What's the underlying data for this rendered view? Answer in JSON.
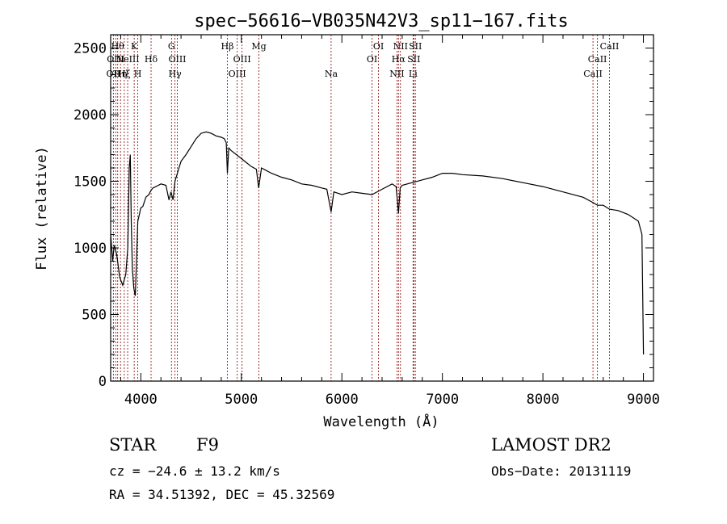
{
  "chart_data": {
    "type": "line",
    "title": "spec−56616−VB035N42V3_sp11−167.fits",
    "xlabel": "Wavelength (Å)",
    "ylabel": "Flux (relative)",
    "xlim": [
      3700,
      9100
    ],
    "ylim": [
      0,
      2600
    ],
    "xticks": [
      4000,
      5000,
      6000,
      7000,
      8000,
      9000
    ],
    "yticks": [
      0,
      500,
      1000,
      1500,
      2000,
      2500
    ],
    "grid": false,
    "line_color": "#000000",
    "marker_color": "#8b0000",
    "series": [
      {
        "x": [
          3700,
          3720,
          3735,
          3760,
          3790,
          3820,
          3850,
          3870,
          3885,
          3895,
          3905,
          3915,
          3930,
          3945,
          3960,
          3970,
          3985,
          4000,
          4020,
          4050,
          4080,
          4100,
          4120,
          4150,
          4200,
          4250,
          4280,
          4300,
          4320,
          4340,
          4360,
          4380,
          4400,
          4450,
          4500,
          4550,
          4600,
          4650,
          4700,
          4750,
          4800,
          4830,
          4850,
          4861,
          4875,
          4900,
          4950,
          5000,
          5050,
          5100,
          5150,
          5172,
          5200,
          5250,
          5300,
          5400,
          5500,
          5600,
          5700,
          5800,
          5850,
          5893,
          5920,
          6000,
          6100,
          6200,
          6300,
          6400,
          6500,
          6540,
          6563,
          6580,
          6600,
          6700,
          6800,
          6900,
          7000,
          7100,
          7200,
          7400,
          7600,
          7800,
          8000,
          8200,
          8400,
          8498,
          8542,
          8600,
          8662,
          8750,
          8850,
          8950,
          8985,
          9000
        ],
        "y": [
          1100,
          900,
          1020,
          950,
          780,
          720,
          800,
          1000,
          1600,
          1700,
          1200,
          850,
          700,
          640,
          980,
          1200,
          1250,
          1300,
          1310,
          1380,
          1400,
          1430,
          1450,
          1460,
          1480,
          1470,
          1360,
          1420,
          1360,
          1500,
          1550,
          1600,
          1650,
          1700,
          1760,
          1820,
          1860,
          1870,
          1860,
          1840,
          1830,
          1820,
          1790,
          1560,
          1750,
          1730,
          1700,
          1670,
          1640,
          1610,
          1590,
          1450,
          1600,
          1580,
          1560,
          1530,
          1510,
          1480,
          1470,
          1450,
          1440,
          1270,
          1420,
          1400,
          1420,
          1410,
          1400,
          1440,
          1480,
          1460,
          1260,
          1450,
          1470,
          1490,
          1510,
          1530,
          1560,
          1560,
          1550,
          1540,
          1520,
          1490,
          1460,
          1420,
          1380,
          1340,
          1320,
          1320,
          1290,
          1280,
          1250,
          1200,
          1100,
          200
        ]
      }
    ],
    "lines": [
      {
        "x": 3727,
        "label": "OII",
        "row": 2
      },
      {
        "x": 3750,
        "label": "OIII",
        "row": 1
      },
      {
        "x": 3770,
        "label": "Hθ",
        "row": 0
      },
      {
        "x": 3798,
        "label": "Hη",
        "row": 2
      },
      {
        "x": 3835,
        "label": "Hξ",
        "row": 2
      },
      {
        "x": 3869,
        "label": "NeIII",
        "row": 1
      },
      {
        "x": 3934,
        "label": "K",
        "row": 0
      },
      {
        "x": 3970,
        "label": "H",
        "row": 2
      },
      {
        "x": 4102,
        "label": "Hδ",
        "row": 1
      },
      {
        "x": 4305,
        "label": "G",
        "row": 0
      },
      {
        "x": 4340,
        "label": "Hγ",
        "row": 2
      },
      {
        "x": 4363,
        "label": "OIII",
        "row": 1
      },
      {
        "x": 4861,
        "label": "Hβ",
        "row": 0
      },
      {
        "x": 4959,
        "label": "OIII",
        "row": 2
      },
      {
        "x": 5007,
        "label": "OIII",
        "row": 1
      },
      {
        "x": 5175,
        "label": "Mg",
        "row": 0
      },
      {
        "x": 5893,
        "label": "Na",
        "row": 2
      },
      {
        "x": 6300,
        "label": "OI",
        "row": 1
      },
      {
        "x": 6364,
        "label": "OI",
        "row": 0
      },
      {
        "x": 6548,
        "label": "NII",
        "row": 2
      },
      {
        "x": 6563,
        "label": "Hα",
        "row": 1
      },
      {
        "x": 6583,
        "label": "NII",
        "row": 0
      },
      {
        "x": 6708,
        "label": "Li",
        "row": 2
      },
      {
        "x": 6716,
        "label": "SII",
        "row": 1
      },
      {
        "x": 6731,
        "label": "SII",
        "row": 0
      },
      {
        "x": 8498,
        "label": "CaII",
        "row": 2
      },
      {
        "x": 8542,
        "label": "CaII",
        "row": 1
      },
      {
        "x": 8662,
        "label": "CaII",
        "row": 0
      }
    ]
  },
  "footer": {
    "object_class": "STAR",
    "subclass": "F9",
    "redshift": "cz = −24.6 ± 13.2 km/s",
    "coords": "RA =  34.51392, DEC =  45.32569",
    "survey": "LAMOST DR2",
    "obs_date": "Obs−Date: 20131119"
  }
}
